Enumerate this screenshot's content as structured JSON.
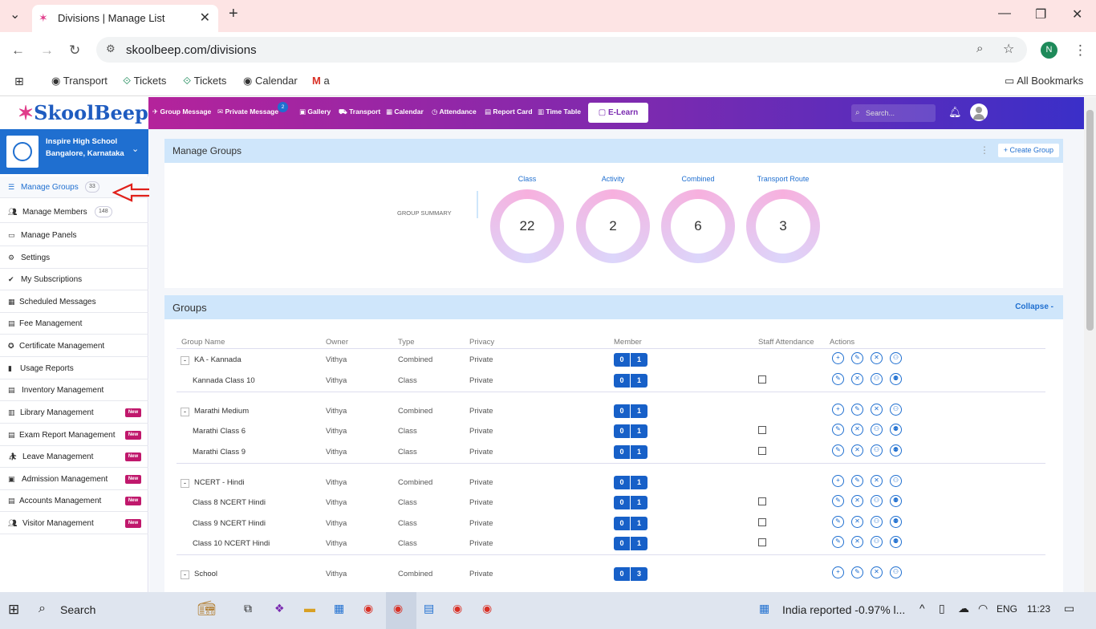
{
  "browser": {
    "tab_title": "Divisions | Manage List",
    "url": "skoolbeep.com/divisions",
    "bookmarks": [
      "Transport",
      "Tickets",
      "Tickets",
      "Calendar",
      "a"
    ],
    "all_bookmarks": "All Bookmarks",
    "profile_initial": "N"
  },
  "app": {
    "logo": "SkoolBeep",
    "topnav": [
      "Group Message",
      "Private Message",
      "Gallery",
      "Transport",
      "Calendar",
      "Attendance",
      "Report Card",
      "Time Table"
    ],
    "private_badge": "2",
    "elearn": "E-Learn",
    "search_placeholder": "Search..."
  },
  "school": {
    "name": "Inspire High School",
    "location": "Bangalore, Karnataka"
  },
  "sidebar": [
    {
      "label": "Manage Groups",
      "count": "33"
    },
    {
      "label": "Manage Members",
      "count": "148"
    },
    {
      "label": "Manage Panels"
    },
    {
      "label": "Settings"
    },
    {
      "label": "My Subscriptions"
    },
    {
      "label": "Scheduled Messages"
    },
    {
      "label": "Fee Management"
    },
    {
      "label": "Certificate Management"
    },
    {
      "label": "Usage Reports"
    },
    {
      "label": "Inventory Management"
    },
    {
      "label": "Library Management",
      "badge": "New"
    },
    {
      "label": "Exam Report Management",
      "badge": "New"
    },
    {
      "label": "Leave Management",
      "badge": "New"
    },
    {
      "label": "Admission Management",
      "badge": "New"
    },
    {
      "label": "Accounts Management",
      "badge": "New"
    },
    {
      "label": "Visitor Management",
      "badge": "New"
    }
  ],
  "manage_groups": {
    "title": "Manage Groups",
    "create": "Create Group",
    "summary_label": "GROUP SUMMARY",
    "summary": [
      {
        "label": "Class",
        "value": "22"
      },
      {
        "label": "Activity",
        "value": "2"
      },
      {
        "label": "Combined",
        "value": "6"
      },
      {
        "label": "Transport Route",
        "value": "3"
      }
    ]
  },
  "groups": {
    "title": "Groups",
    "collapse": "Collapse -",
    "headers": [
      "Group Name",
      "Owner",
      "Type",
      "Privacy",
      "Member",
      "Staff Attendance",
      "Actions"
    ],
    "rows": [
      {
        "name": "KA - Kannada",
        "owner": "Vithya",
        "type": "Combined",
        "privacy": "Private",
        "m1": "0",
        "m2": "1",
        "parent": true
      },
      {
        "name": "Kannada Class 10",
        "owner": "Vithya",
        "type": "Class",
        "privacy": "Private",
        "m1": "0",
        "m2": "1",
        "parent": false
      },
      {
        "name": "Marathi Medium",
        "owner": "Vithya",
        "type": "Combined",
        "privacy": "Private",
        "m1": "0",
        "m2": "1",
        "parent": true
      },
      {
        "name": "Marathi Class 6",
        "owner": "Vithya",
        "type": "Class",
        "privacy": "Private",
        "m1": "0",
        "m2": "1",
        "parent": false
      },
      {
        "name": "Marathi Class 9",
        "owner": "Vithya",
        "type": "Class",
        "privacy": "Private",
        "m1": "0",
        "m2": "1",
        "parent": false
      },
      {
        "name": "NCERT - Hindi",
        "owner": "Vithya",
        "type": "Combined",
        "privacy": "Private",
        "m1": "0",
        "m2": "1",
        "parent": true
      },
      {
        "name": "Class 8 NCERT Hindi",
        "owner": "Vithya",
        "type": "Class",
        "privacy": "Private",
        "m1": "0",
        "m2": "1",
        "parent": false
      },
      {
        "name": "Class 9 NCERT Hindi",
        "owner": "Vithya",
        "type": "Class",
        "privacy": "Private",
        "m1": "0",
        "m2": "1",
        "parent": false
      },
      {
        "name": "Class 10 NCERT Hindi",
        "owner": "Vithya",
        "type": "Class",
        "privacy": "Private",
        "m1": "0",
        "m2": "1",
        "parent": false
      },
      {
        "name": "School",
        "owner": "Vithya",
        "type": "Combined",
        "privacy": "Private",
        "m1": "0",
        "m2": "3",
        "parent": true
      }
    ]
  },
  "taskbar": {
    "search": "Search",
    "news": "India reported -0.97% l...",
    "lang": "ENG",
    "time": "11:23"
  }
}
